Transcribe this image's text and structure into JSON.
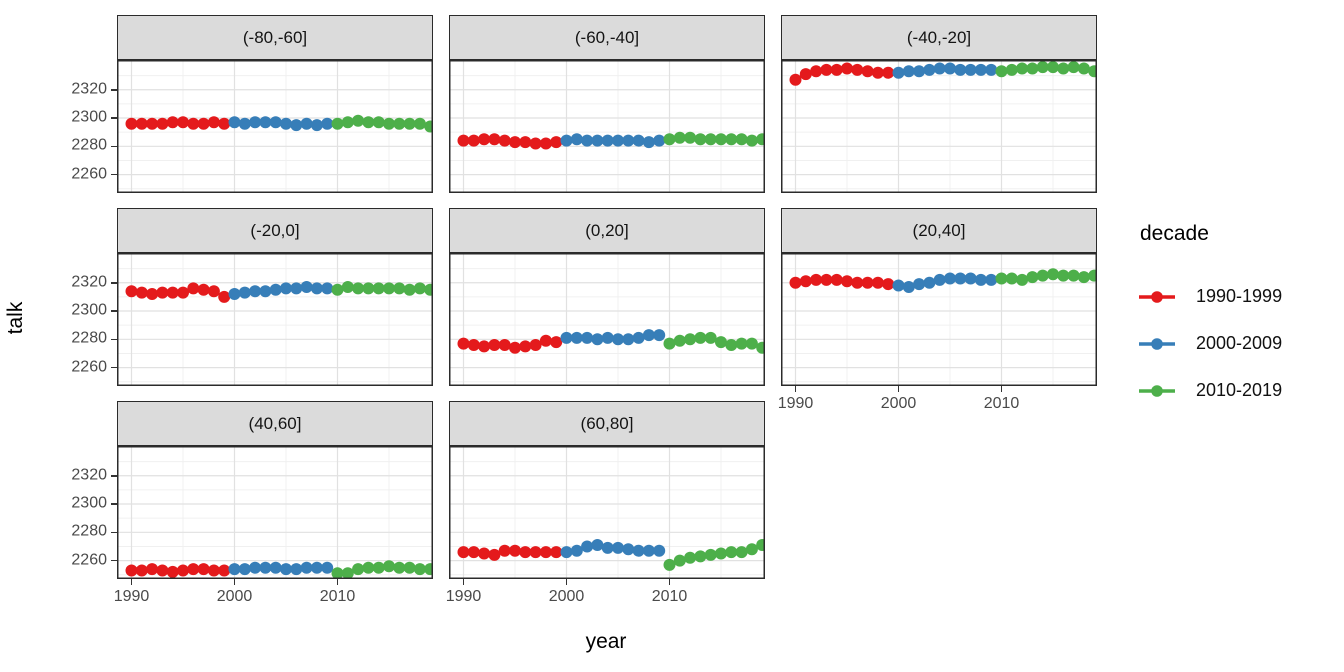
{
  "figure": {
    "y_axis_title": "talk",
    "x_axis_title": "year",
    "legend": {
      "title": "decade",
      "entries": [
        {
          "label": "1990-1999",
          "color": "#E41A1C"
        },
        {
          "label": "2000-2009",
          "color": "#377EB8"
        },
        {
          "label": "2010-2019",
          "color": "#4DAF4A"
        }
      ]
    }
  },
  "chart_data": {
    "type": "scatter",
    "title": "",
    "xlabel": "year",
    "ylabel": "talk",
    "facet_variable": "latitude band",
    "legend_title": "decade",
    "legend_position": "right",
    "grid": "on",
    "x_ticks": [
      1990,
      2000,
      2010
    ],
    "x_minor": [
      1995,
      2005,
      2015
    ],
    "y_ticks": [
      2320,
      2300,
      2280,
      2260
    ],
    "y_minor": [
      2250,
      2270,
      2290,
      2310,
      2330
    ],
    "ylim": [
      2247,
      2341
    ],
    "xlim": [
      1988.6,
      2019.4
    ],
    "series_colors": {
      "1990-1999": "#E41A1C",
      "2000-2009": "#377EB8",
      "2010-2019": "#4DAF4A"
    },
    "series_years": {
      "1990-1999": [
        1990,
        1991,
        1992,
        1993,
        1994,
        1995,
        1996,
        1997,
        1998,
        1999
      ],
      "2000-2009": [
        2000,
        2001,
        2002,
        2003,
        2004,
        2005,
        2006,
        2007,
        2008,
        2009
      ],
      "2010-2019": [
        2010,
        2011,
        2012,
        2013,
        2014,
        2015,
        2016,
        2017,
        2018,
        2019
      ]
    },
    "facets": [
      {
        "label": "(-80,-60]",
        "series": {
          "1990-1999": [
            2296,
            2296,
            2296,
            2296,
            2297,
            2297,
            2296,
            2296,
            2297,
            2296
          ],
          "2000-2009": [
            2297,
            2296,
            2297,
            2297,
            2297,
            2296,
            2295,
            2296,
            2295,
            2296
          ],
          "2010-2019": [
            2296,
            2297,
            2298,
            2297,
            2297,
            2296,
            2296,
            2296,
            2296,
            2294
          ]
        }
      },
      {
        "label": "(-60,-40]",
        "series": {
          "1990-1999": [
            2284,
            2284,
            2285,
            2285,
            2284,
            2283,
            2283,
            2282,
            2282,
            2283
          ],
          "2000-2009": [
            2284,
            2285,
            2284,
            2284,
            2284,
            2284,
            2284,
            2284,
            2283,
            2284
          ],
          "2010-2019": [
            2285,
            2286,
            2286,
            2285,
            2285,
            2285,
            2285,
            2285,
            2284,
            2285
          ]
        }
      },
      {
        "label": "(-40,-20]",
        "series": {
          "1990-1999": [
            2327,
            2331,
            2333,
            2334,
            2334,
            2335,
            2334,
            2333,
            2332,
            2332
          ],
          "2000-2009": [
            2332,
            2333,
            2333,
            2334,
            2335,
            2335,
            2334,
            2334,
            2334,
            2334
          ],
          "2010-2019": [
            2333,
            2334,
            2335,
            2335,
            2336,
            2336,
            2335,
            2336,
            2335,
            2333
          ]
        }
      },
      {
        "label": "(-20,0]",
        "series": {
          "1990-1999": [
            2314,
            2313,
            2312,
            2313,
            2313,
            2313,
            2316,
            2315,
            2314,
            2310
          ],
          "2000-2009": [
            2312,
            2313,
            2314,
            2314,
            2315,
            2316,
            2316,
            2317,
            2316,
            2316
          ],
          "2010-2019": [
            2315,
            2317,
            2316,
            2316,
            2316,
            2316,
            2316,
            2315,
            2316,
            2315
          ]
        }
      },
      {
        "label": "(0,20]",
        "series": {
          "1990-1999": [
            2277,
            2276,
            2275,
            2276,
            2276,
            2274,
            2275,
            2276,
            2279,
            2278
          ],
          "2000-2009": [
            2281,
            2281,
            2281,
            2280,
            2281,
            2280,
            2280,
            2281,
            2283,
            2283
          ],
          "2010-2019": [
            2277,
            2279,
            2280,
            2281,
            2281,
            2278,
            2276,
            2277,
            2277,
            2274
          ]
        }
      },
      {
        "label": "(20,40]",
        "series": {
          "1990-1999": [
            2320,
            2321,
            2322,
            2322,
            2322,
            2321,
            2320,
            2320,
            2320,
            2319
          ],
          "2000-2009": [
            2318,
            2317,
            2319,
            2320,
            2322,
            2323,
            2323,
            2323,
            2322,
            2322
          ],
          "2010-2019": [
            2323,
            2323,
            2322,
            2324,
            2325,
            2326,
            2325,
            2325,
            2324,
            2325
          ]
        }
      },
      {
        "label": "(40,60]",
        "series": {
          "1990-1999": [
            2253,
            2253,
            2254,
            2253,
            2252,
            2253,
            2254,
            2254,
            2253,
            2253
          ],
          "2000-2009": [
            2254,
            2254,
            2255,
            2255,
            2255,
            2254,
            2254,
            2255,
            2255,
            2255
          ],
          "2010-2019": [
            2251,
            2251,
            2254,
            2255,
            2255,
            2256,
            2255,
            2255,
            2254,
            2254
          ]
        }
      },
      {
        "label": "(60,80]",
        "series": {
          "1990-1999": [
            2266,
            2266,
            2265,
            2264,
            2267,
            2267,
            2266,
            2266,
            2266,
            2266
          ],
          "2000-2009": [
            2266,
            2267,
            2270,
            2271,
            2269,
            2269,
            2268,
            2267,
            2267,
            2267
          ],
          "2010-2019": [
            2257,
            2260,
            2262,
            2263,
            2264,
            2265,
            2266,
            2266,
            2268,
            2271
          ]
        }
      }
    ]
  }
}
